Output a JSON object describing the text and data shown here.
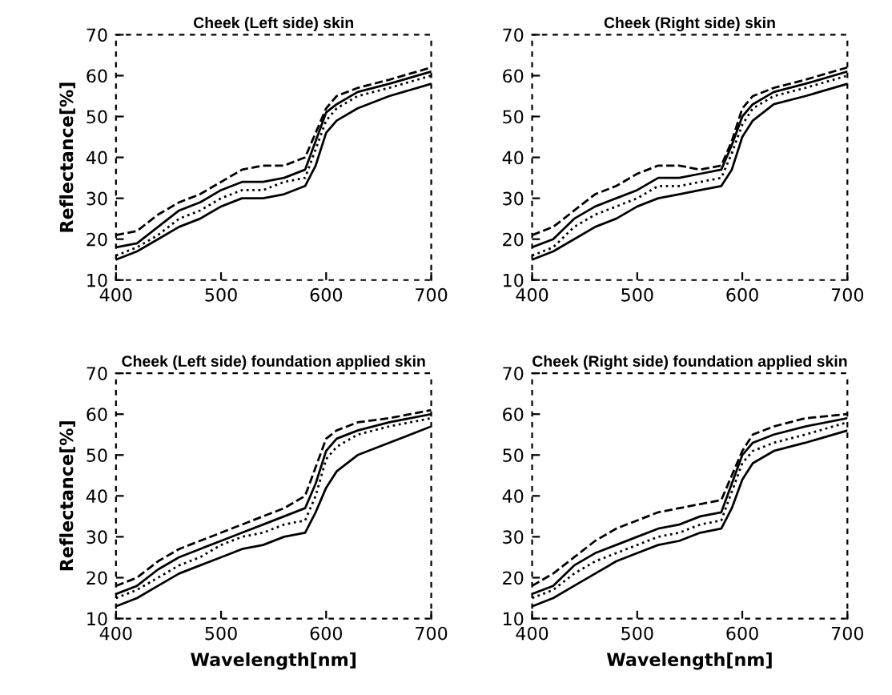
{
  "chart_data": [
    {
      "type": "line",
      "title": "Cheek (Left side) skin",
      "ylabel": "Reflectance[%]",
      "x": [
        400,
        420,
        440,
        460,
        480,
        500,
        520,
        540,
        560,
        580,
        590,
        600,
        610,
        630,
        660,
        700
      ],
      "xlim": [
        400,
        700
      ],
      "ylim": [
        10,
        70
      ],
      "xticks": [
        400,
        500,
        600,
        700
      ],
      "yticks": [
        10,
        20,
        30,
        40,
        50,
        60,
        70
      ],
      "series": [
        {
          "color": "#000000",
          "line_style": "dashed",
          "values": [
            21,
            22,
            26,
            29,
            31,
            34,
            37,
            38,
            38,
            40,
            46,
            52,
            55,
            57,
            59,
            62
          ]
        },
        {
          "color": "#000000",
          "line_style": "solid",
          "values": [
            18,
            19,
            23,
            27,
            29,
            32,
            34,
            34,
            35,
            37,
            44,
            51,
            53,
            56,
            58,
            61
          ]
        },
        {
          "color": "#000000",
          "line_style": "dotted",
          "values": [
            16,
            18,
            21,
            25,
            27,
            30,
            32,
            32,
            34,
            35,
            42,
            49,
            52,
            55,
            57,
            60
          ]
        },
        {
          "color": "#000000",
          "line_style": "solid",
          "values": [
            15,
            17,
            20,
            23,
            25,
            28,
            30,
            30,
            31,
            33,
            38,
            46,
            49,
            52,
            55,
            58
          ]
        }
      ]
    },
    {
      "type": "line",
      "title": "Cheek (Right side) skin",
      "x": [
        400,
        420,
        440,
        460,
        480,
        500,
        520,
        540,
        560,
        580,
        590,
        600,
        610,
        630,
        660,
        700
      ],
      "xlim": [
        400,
        700
      ],
      "ylim": [
        10,
        70
      ],
      "xticks": [
        400,
        500,
        600,
        700
      ],
      "yticks": [
        10,
        20,
        30,
        40,
        50,
        60,
        70
      ],
      "series": [
        {
          "color": "#000000",
          "line_style": "dashed",
          "values": [
            21,
            23,
            27,
            31,
            33,
            36,
            38,
            38,
            37,
            38,
            44,
            52,
            55,
            57,
            59,
            62
          ]
        },
        {
          "color": "#000000",
          "line_style": "solid",
          "values": [
            18,
            20,
            25,
            28,
            30,
            32,
            35,
            35,
            36,
            37,
            43,
            50,
            53,
            56,
            58,
            61
          ]
        },
        {
          "color": "#000000",
          "line_style": "dotted",
          "values": [
            16,
            18,
            23,
            26,
            28,
            30,
            33,
            33,
            34,
            35,
            41,
            48,
            52,
            55,
            57,
            60
          ]
        },
        {
          "color": "#000000",
          "line_style": "solid",
          "values": [
            15,
            17,
            20,
            23,
            25,
            28,
            30,
            31,
            32,
            33,
            37,
            45,
            49,
            53,
            55,
            58
          ]
        }
      ]
    },
    {
      "type": "line",
      "title": "Cheek (Left side) foundation applied skin",
      "xlabel": "Wavelength[nm]",
      "ylabel": "Reflectance[%]",
      "x": [
        400,
        420,
        440,
        460,
        480,
        500,
        520,
        540,
        560,
        580,
        590,
        600,
        610,
        630,
        660,
        700
      ],
      "xlim": [
        400,
        700
      ],
      "ylim": [
        10,
        70
      ],
      "xticks": [
        400,
        500,
        600,
        700
      ],
      "yticks": [
        10,
        20,
        30,
        40,
        50,
        60,
        70
      ],
      "series": [
        {
          "color": "#000000",
          "line_style": "dashed",
          "values": [
            18,
            20,
            24,
            27,
            29,
            31,
            33,
            35,
            37,
            40,
            47,
            54,
            56,
            58,
            59,
            61
          ]
        },
        {
          "color": "#000000",
          "line_style": "solid",
          "values": [
            16,
            18,
            22,
            25,
            27,
            29,
            31,
            33,
            35,
            37,
            43,
            51,
            54,
            56,
            58,
            60
          ]
        },
        {
          "color": "#000000",
          "line_style": "dotted",
          "values": [
            15,
            17,
            20,
            23,
            25,
            28,
            30,
            31,
            33,
            34,
            40,
            49,
            52,
            55,
            57,
            59
          ]
        },
        {
          "color": "#000000",
          "line_style": "solid",
          "values": [
            13,
            15,
            18,
            21,
            23,
            25,
            27,
            28,
            30,
            31,
            36,
            42,
            46,
            50,
            53,
            57
          ]
        }
      ]
    },
    {
      "type": "line",
      "title": "Cheek (Right side) foundation applied skin",
      "xlabel": "Wavelength[nm]",
      "x": [
        400,
        420,
        440,
        460,
        480,
        500,
        520,
        540,
        560,
        580,
        590,
        600,
        610,
        630,
        660,
        700
      ],
      "xlim": [
        400,
        700
      ],
      "ylim": [
        10,
        70
      ],
      "xticks": [
        400,
        500,
        600,
        700
      ],
      "yticks": [
        10,
        20,
        30,
        40,
        50,
        60,
        70
      ],
      "series": [
        {
          "color": "#000000",
          "line_style": "dashed",
          "values": [
            18,
            21,
            25,
            29,
            32,
            34,
            36,
            37,
            38,
            39,
            45,
            51,
            55,
            57,
            59,
            60
          ]
        },
        {
          "color": "#000000",
          "line_style": "solid",
          "values": [
            16,
            18,
            23,
            26,
            28,
            30,
            32,
            33,
            35,
            36,
            43,
            50,
            53,
            55,
            57,
            59
          ]
        },
        {
          "color": "#000000",
          "line_style": "dotted",
          "values": [
            15,
            17,
            21,
            24,
            26,
            28,
            30,
            31,
            33,
            34,
            41,
            48,
            51,
            53,
            55,
            58
          ]
        },
        {
          "color": "#000000",
          "line_style": "solid",
          "values": [
            13,
            15,
            18,
            21,
            24,
            26,
            28,
            29,
            31,
            32,
            37,
            44,
            48,
            51,
            53,
            56
          ]
        }
      ]
    }
  ]
}
